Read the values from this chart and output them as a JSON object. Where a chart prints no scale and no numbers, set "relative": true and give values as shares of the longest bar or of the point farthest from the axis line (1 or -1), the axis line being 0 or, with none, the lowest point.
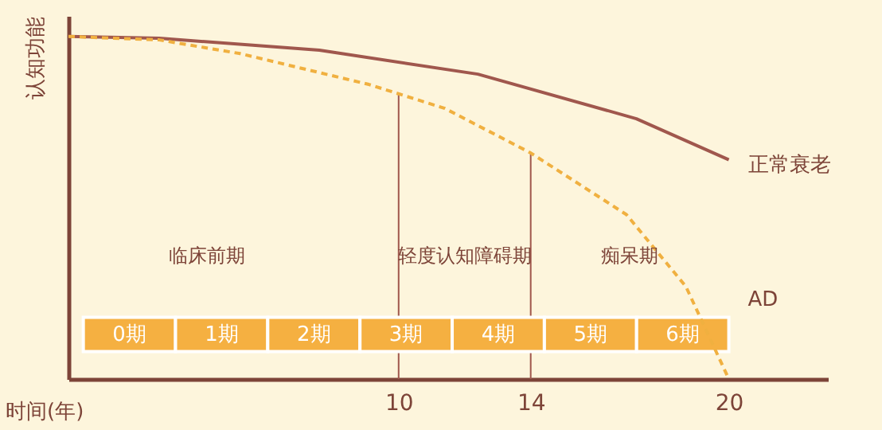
{
  "chart_data": {
    "type": "line",
    "relative": true,
    "xlabel": "时间(年)",
    "ylabel": "认知功能",
    "xlim": [
      0,
      23
    ],
    "xticks": [
      10,
      14,
      20
    ],
    "series": [
      {
        "name": "正常衰老",
        "color": "#a0574d",
        "x": [
          0,
          2.75,
          7.6,
          12.4,
          17.2,
          20
        ],
        "values": [
          1,
          0.995,
          0.96,
          0.89,
          0.76,
          0.64
        ]
      },
      {
        "name": "AD",
        "color": "#f0b040",
        "line_style": "dashed",
        "x": [
          0,
          2.75,
          5.2,
          9.1,
          11.4,
          14,
          16.9,
          18.7,
          20
        ],
        "values": [
          1,
          0.99,
          0.95,
          0.86,
          0.79,
          0.66,
          0.48,
          0.27,
          0
        ]
      }
    ],
    "ref_lines": [
      {
        "axis": "x",
        "value": 10,
        "color": "#a0574d"
      },
      {
        "axis": "x",
        "value": 14,
        "color": "#a0574d"
      }
    ],
    "annotations": [
      "临床前期",
      "轻度认知障碍期",
      "痴呆期",
      "0期",
      "1期",
      "2期",
      "3期",
      "4期",
      "5期",
      "6期"
    ]
  }
}
